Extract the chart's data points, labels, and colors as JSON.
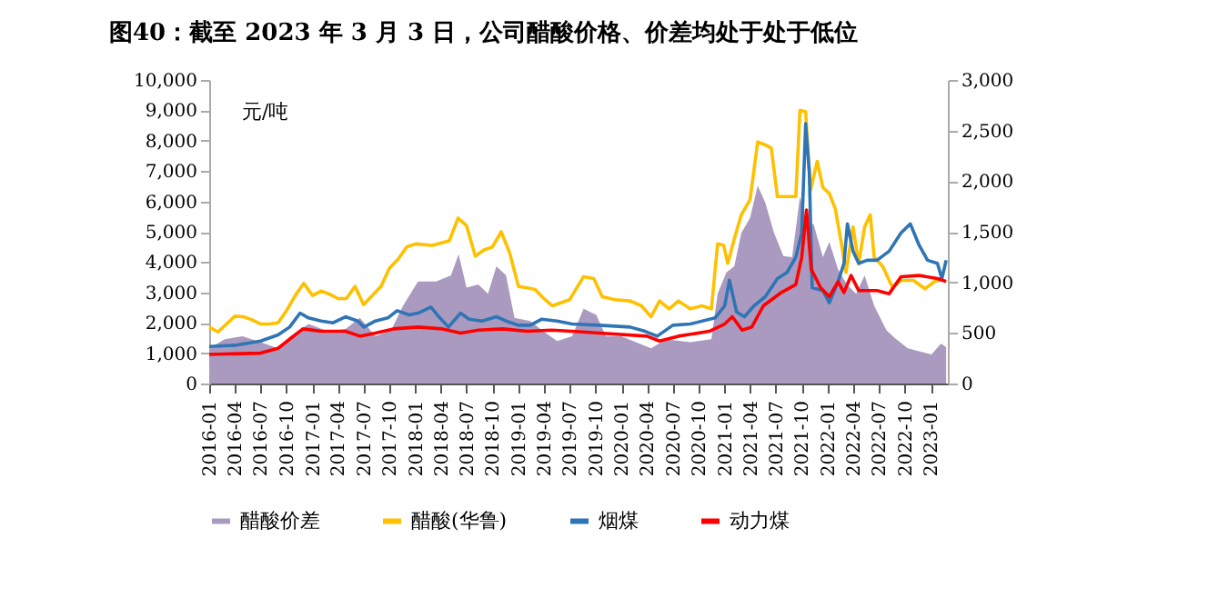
{
  "chart_data": {
    "type": "line",
    "title": "图40：截至 2023 年 3 月 3 日，公司醋酸价格、价差均处于处于低位",
    "ylabel": "元/吨",
    "legend": "bottom",
    "grid": false,
    "xlim": [
      "2016-01-01",
      "2023-03-03"
    ],
    "xticks": [
      "2016-01",
      "2016-04",
      "2016-07",
      "2016-10",
      "2017-01",
      "2017-04",
      "2017-07",
      "2017-10",
      "2018-01",
      "2018-04",
      "2018-07",
      "2018-10",
      "2019-01",
      "2019-04",
      "2019-07",
      "2019-10",
      "2020-01",
      "2020-04",
      "2020-07",
      "2020-10",
      "2021-01",
      "2021-04",
      "2021-07",
      "2021-10",
      "2022-01",
      "2022-04",
      "2022-07",
      "2022-10",
      "2023-01"
    ],
    "ylim": [
      0,
      10000
    ],
    "yticks": [
      0,
      {
        "value": 1000,
        "label": "1,000"
      },
      {
        "value": 2000,
        "label": "2,000"
      },
      {
        "value": 3000,
        "label": "3,000"
      },
      {
        "value": 4000,
        "label": "4,000"
      },
      {
        "value": 5000,
        "label": "5,000"
      },
      {
        "value": 6000,
        "label": "6,000"
      },
      {
        "value": 7000,
        "label": "7,000"
      },
      {
        "value": 8000,
        "label": "8,000"
      },
      {
        "value": 9000,
        "label": "9,000"
      },
      {
        "value": 10000,
        "label": "10,000"
      }
    ],
    "y2lim": [
      0,
      3000
    ],
    "y2ticks": [
      0,
      500,
      {
        "value": 1000,
        "label": "1,000"
      },
      {
        "value": 1500,
        "label": "1,500"
      },
      {
        "value": 2000,
        "label": "2,000"
      },
      {
        "value": 2500,
        "label": "2,500"
      },
      {
        "value": 3000,
        "label": "3,000"
      }
    ],
    "series": [
      {
        "name": "醋酸价差",
        "type": "area",
        "color": "#ab9ac0",
        "x": [
          "2016-01-01",
          "2016-02-25",
          "2016-04-28",
          "2016-07-01",
          "2016-09-01",
          "2016-10-15",
          "2016-12-18",
          "2017-02-25",
          "2017-04-28",
          "2017-06-18",
          "2017-08-12",
          "2017-10-07",
          "2017-11-18",
          "2018-01-10",
          "2018-03-15",
          "2018-05-07",
          "2018-06-03",
          "2018-07-01",
          "2018-08-12",
          "2018-09-15",
          "2018-10-15",
          "2018-11-18",
          "2018-12-18",
          "2019-02-12",
          "2019-03-25",
          "2019-05-18",
          "2019-07-10",
          "2019-08-20",
          "2019-10-04",
          "2019-11-07",
          "2020-01-01",
          "2020-04-15",
          "2020-06-07",
          "2020-09-01",
          "2020-11-15",
          "2020-12-07",
          "2021-01-07",
          "2021-02-04",
          "2021-03-01",
          "2021-04-01",
          "2021-04-28",
          "2021-05-25",
          "2021-06-25",
          "2021-07-28",
          "2021-08-28",
          "2021-09-25",
          "2021-10-21",
          "2021-11-12",
          "2021-12-15",
          "2022-01-07",
          "2022-02-07",
          "2022-03-10",
          "2022-04-12",
          "2022-05-12",
          "2022-06-15",
          "2022-07-28",
          "2022-09-01",
          "2022-10-12",
          "2022-11-21",
          "2023-01-04",
          "2023-02-07",
          "2023-02-25"
        ],
        "values": [
          1160,
          1460,
          1560,
          1360,
          1160,
          1560,
          1960,
          1720,
          1800,
          2160,
          1560,
          1760,
          2560,
          3360,
          3360,
          3560,
          4260,
          3160,
          3260,
          2960,
          3860,
          3560,
          2160,
          2060,
          1760,
          1400,
          1560,
          2460,
          2260,
          1560,
          1560,
          1160,
          1460,
          1360,
          1460,
          2960,
          3660,
          3860,
          4960,
          5460,
          6520,
          5960,
          4960,
          4200,
          4160,
          6160,
          5160,
          5260,
          4160,
          4660,
          3760,
          3260,
          2960,
          3560,
          2560,
          1760,
          1460,
          1160,
          1060,
          960,
          1320,
          1200
        ]
      },
      {
        "name": "醋酸(华鲁)",
        "color": "#ffc000",
        "x": [
          "2016-01-01",
          "2016-02-01",
          "2016-03-01",
          "2016-04-01",
          "2016-05-01",
          "2016-06-01",
          "2016-07-01",
          "2016-08-01",
          "2016-09-01",
          "2016-10-01",
          "2016-11-01",
          "2016-12-01",
          "2017-01-01",
          "2017-02-01",
          "2017-03-01",
          "2017-04-01",
          "2017-05-01",
          "2017-06-01",
          "2017-07-01",
          "2017-08-01",
          "2017-09-01",
          "2017-10-01",
          "2017-11-01",
          "2017-12-01",
          "2018-01-01",
          "2018-03-01",
          "2018-05-01",
          "2018-06-01",
          "2018-07-01",
          "2018-08-01",
          "2018-09-01",
          "2018-10-01",
          "2018-11-01",
          "2018-12-01",
          "2019-01-01",
          "2019-02-01",
          "2019-03-01",
          "2019-04-01",
          "2019-05-01",
          "2019-07-01",
          "2019-08-20",
          "2019-09-25",
          "2019-10-25",
          "2019-12-10",
          "2020-02-01",
          "2020-03-12",
          "2020-04-15",
          "2020-05-15",
          "2020-06-18",
          "2020-07-21",
          "2020-09-01",
          "2020-10-12",
          "2020-11-15",
          "2020-12-07",
          "2020-12-28",
          "2021-01-12",
          "2021-02-04",
          "2021-03-01",
          "2021-04-01",
          "2021-04-28",
          "2021-05-25",
          "2021-06-15",
          "2021-07-07",
          "2021-07-28",
          "2021-09-10",
          "2021-09-25",
          "2021-10-15",
          "2021-11-01",
          "2021-11-25",
          "2021-12-15",
          "2022-01-07",
          "2022-01-28",
          "2022-02-18",
          "2022-03-07",
          "2022-04-01",
          "2022-04-21",
          "2022-05-12",
          "2022-06-01",
          "2022-06-15",
          "2022-07-15",
          "2022-08-19",
          "2022-09-18",
          "2022-11-01",
          "2022-12-12",
          "2023-01-15",
          "2023-02-15"
        ],
        "values": [
          1860,
          1700,
          1950,
          2220,
          2200,
          2100,
          1960,
          1960,
          2000,
          2400,
          2900,
          3300,
          2900,
          3050,
          2950,
          2800,
          2800,
          3200,
          2600,
          2900,
          3200,
          3800,
          4100,
          4500,
          4600,
          4550,
          4700,
          5450,
          5200,
          4200,
          4400,
          4500,
          5000,
          4300,
          3200,
          3150,
          3100,
          2800,
          2560,
          2760,
          3520,
          3460,
          2860,
          2760,
          2720,
          2560,
          2200,
          2720,
          2460,
          2720,
          2460,
          2560,
          2460,
          4600,
          4560,
          3960,
          4760,
          5560,
          6060,
          7960,
          7860,
          7760,
          6160,
          6160,
          6160,
          9000,
          8960,
          6360,
          7320,
          6460,
          6260,
          5760,
          4660,
          3660,
          5160,
          3940,
          5160,
          5560,
          4160,
          3860,
          3160,
          3400,
          3400,
          3120,
          3360,
          3460
        ]
      },
      {
        "name": "烟煤",
        "axis": "y2",
        "color": "#2e75b6",
        "x": [
          "2016-01-01",
          "2016-04-01",
          "2016-07-01",
          "2016-09-01",
          "2016-10-12",
          "2016-11-18",
          "2016-12-18",
          "2017-02-01",
          "2017-03-15",
          "2017-04-28",
          "2017-06-10",
          "2017-07-03",
          "2017-08-12",
          "2017-09-25",
          "2017-10-28",
          "2017-12-10",
          "2018-01-10",
          "2018-02-25",
          "2018-03-25",
          "2018-04-28",
          "2018-06-10",
          "2018-07-10",
          "2018-08-25",
          "2018-10-15",
          "2018-11-18",
          "2019-01-01",
          "2019-02-12",
          "2019-03-25",
          "2019-05-18",
          "2019-07-10",
          "2019-10-15",
          "2020-02-01",
          "2020-03-25",
          "2020-05-07",
          "2020-07-01",
          "2020-09-01",
          "2020-11-28",
          "2021-01-01",
          "2021-01-18",
          "2021-02-12",
          "2021-03-12",
          "2021-04-15",
          "2021-05-25",
          "2021-07-07",
          "2021-08-10",
          "2021-09-10",
          "2021-10-01",
          "2021-10-15",
          "2021-10-28",
          "2021-11-07",
          "2021-12-15",
          "2022-01-07",
          "2022-02-07",
          "2022-02-28",
          "2022-03-12",
          "2022-04-01",
          "2022-04-21",
          "2022-05-21",
          "2022-06-25",
          "2022-08-07",
          "2022-09-18",
          "2022-10-21",
          "2022-11-21",
          "2022-12-21",
          "2023-01-25",
          "2023-02-10",
          "2023-02-25"
        ],
        "values": [
          366,
          378,
          420,
          480,
          558,
          696,
          648,
          618,
          600,
          660,
          618,
          558,
          618,
          648,
          720,
          678,
          696,
          756,
          660,
          558,
          696,
          636,
          618,
          660,
          618,
          576,
          576,
          636,
          618,
          588,
          576,
          558,
          516,
          468,
          576,
          588,
          648,
          768,
          1020,
          708,
          660,
          768,
          858,
          1038,
          1098,
          1248,
          1488,
          2568,
          2088,
          948,
          918,
          798,
          1008,
          1188,
          1578,
          1308,
          1188,
          1218,
          1218,
          1308,
          1488,
          1578,
          1368,
          1218,
          1188,
          1038,
          1218
        ]
      },
      {
        "name": "动力煤",
        "axis": "y2",
        "color": "#ff0000",
        "x": [
          "2016-01-01",
          "2016-07-01",
          "2016-09-01",
          "2016-10-12",
          "2016-11-28",
          "2017-02-01",
          "2017-04-28",
          "2017-06-18",
          "2017-08-12",
          "2017-10-15",
          "2018-01-10",
          "2018-04-07",
          "2018-06-10",
          "2018-08-12",
          "2018-11-07",
          "2019-02-01",
          "2019-04-28",
          "2019-07-10",
          "2019-10-15",
          "2020-04-01",
          "2020-05-15",
          "2020-07-21",
          "2020-11-07",
          "2021-01-01",
          "2021-01-28",
          "2021-03-04",
          "2021-04-07",
          "2021-05-18",
          "2021-07-21",
          "2021-09-10",
          "2021-10-01",
          "2021-10-18",
          "2021-11-04",
          "2021-12-07",
          "2022-01-07",
          "2022-02-07",
          "2022-02-28",
          "2022-03-25",
          "2022-04-21",
          "2022-06-25",
          "2022-08-07",
          "2022-09-18",
          "2022-11-21",
          "2023-01-25",
          "2023-02-25"
        ],
        "values": [
          288,
          300,
          348,
          438,
          540,
          516,
          516,
          468,
          498,
          540,
          558,
          540,
          498,
          528,
          540,
          516,
          528,
          516,
          498,
          468,
          420,
          468,
          516,
          588,
          660,
          528,
          558,
          768,
          900,
          978,
          1248,
          1716,
          1128,
          948,
          858,
          1008,
          900,
          1068,
          918,
          918,
          888,
          1056,
          1068,
          1038,
          1008
        ]
      }
    ]
  }
}
